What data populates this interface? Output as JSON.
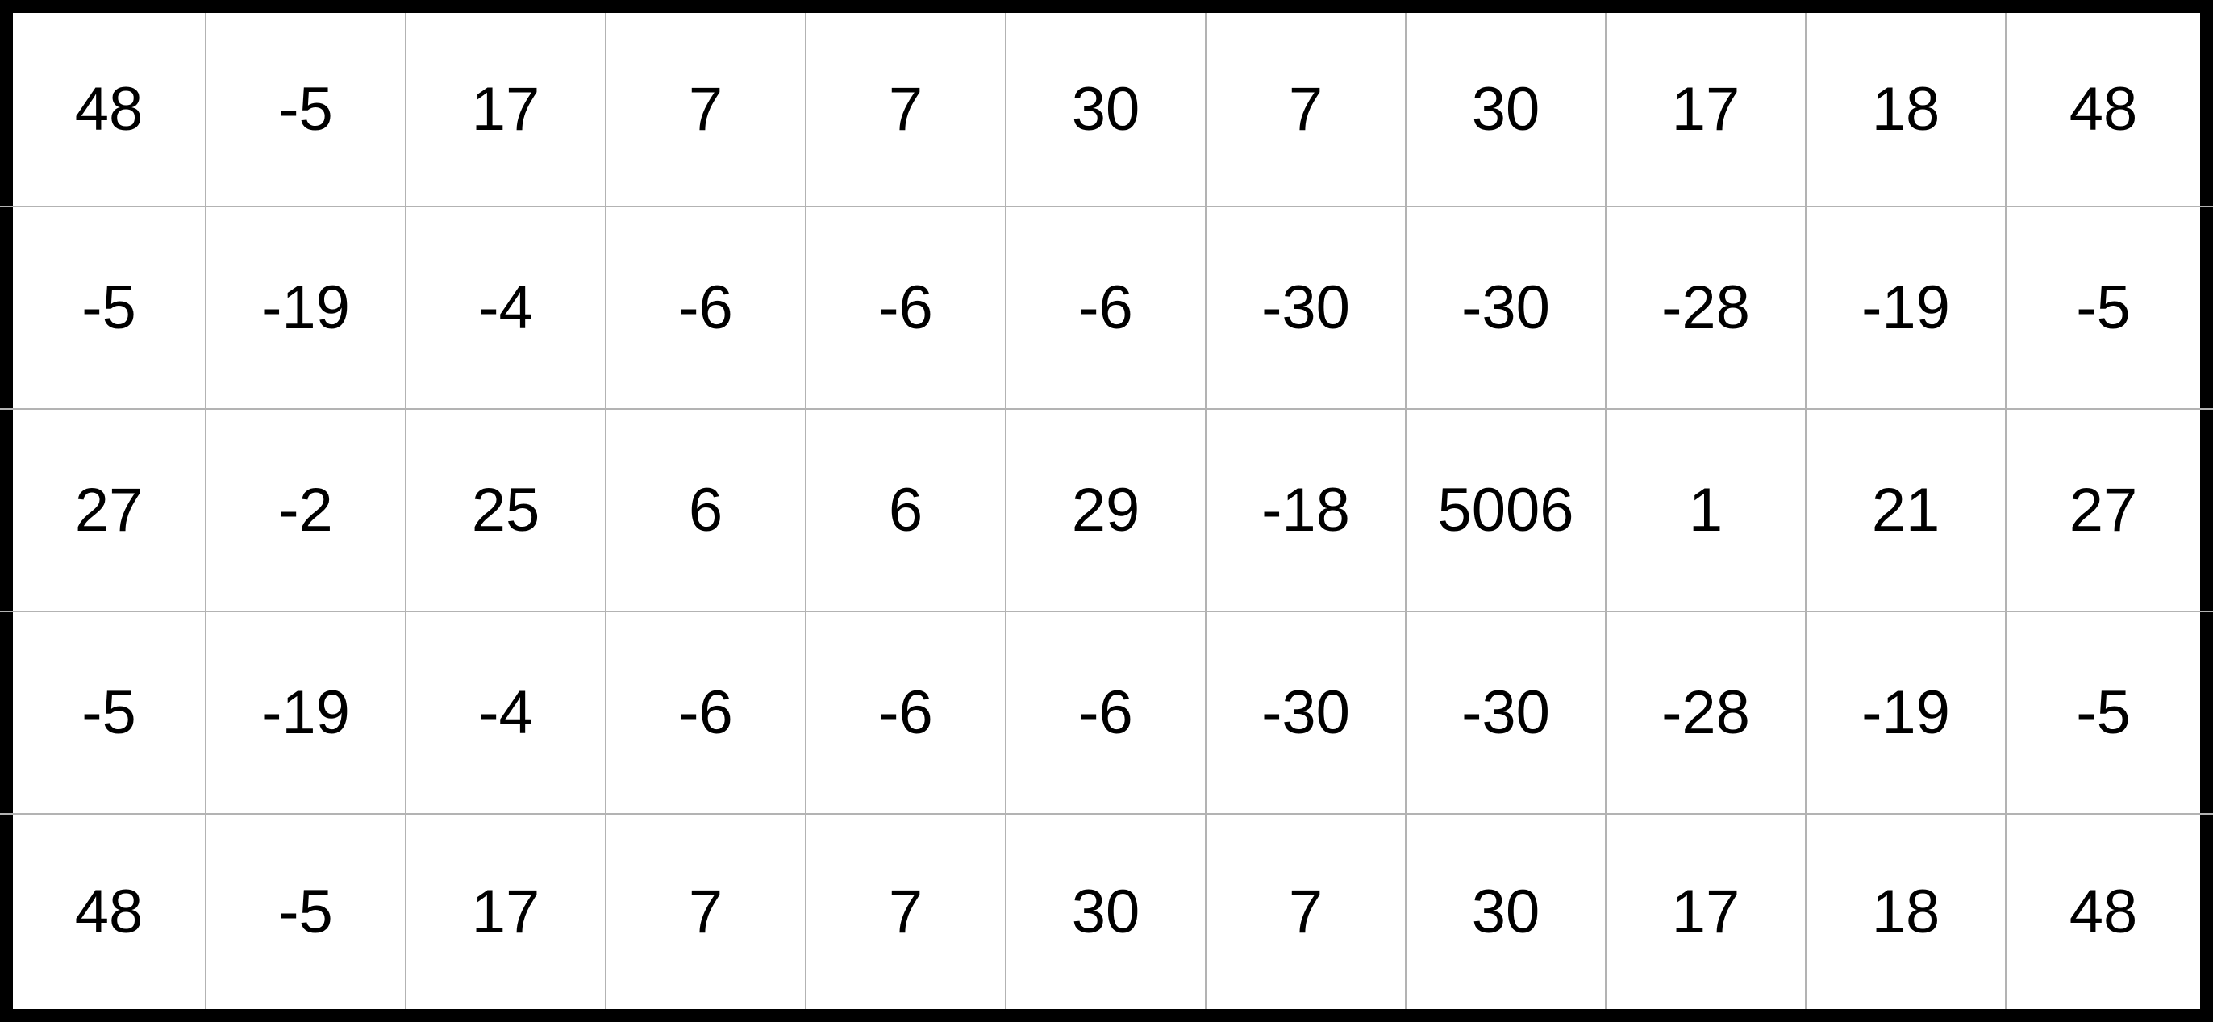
{
  "grid": {
    "rows": [
      [
        "48",
        "-5",
        "17",
        "7",
        "7",
        "30",
        "7",
        "30",
        "17",
        "18",
        "48"
      ],
      [
        "-5",
        "-19",
        "-4",
        "-6",
        "-6",
        "-6",
        "-30",
        "-30",
        "-28",
        "-19",
        "-5"
      ],
      [
        "27",
        "-2",
        "25",
        "6",
        "6",
        "29",
        "-18",
        "5006",
        "1",
        "21",
        "27"
      ],
      [
        "-5",
        "-19",
        "-4",
        "-6",
        "-6",
        "-6",
        "-30",
        "-30",
        "-28",
        "-19",
        "-5"
      ],
      [
        "48",
        "-5",
        "17",
        "7",
        "7",
        "30",
        "7",
        "30",
        "17",
        "18",
        "48"
      ]
    ]
  },
  "colors": {
    "frame": "#000000",
    "background": "#ffffff",
    "gridline": "#b3b3b3",
    "text": "#000000"
  }
}
